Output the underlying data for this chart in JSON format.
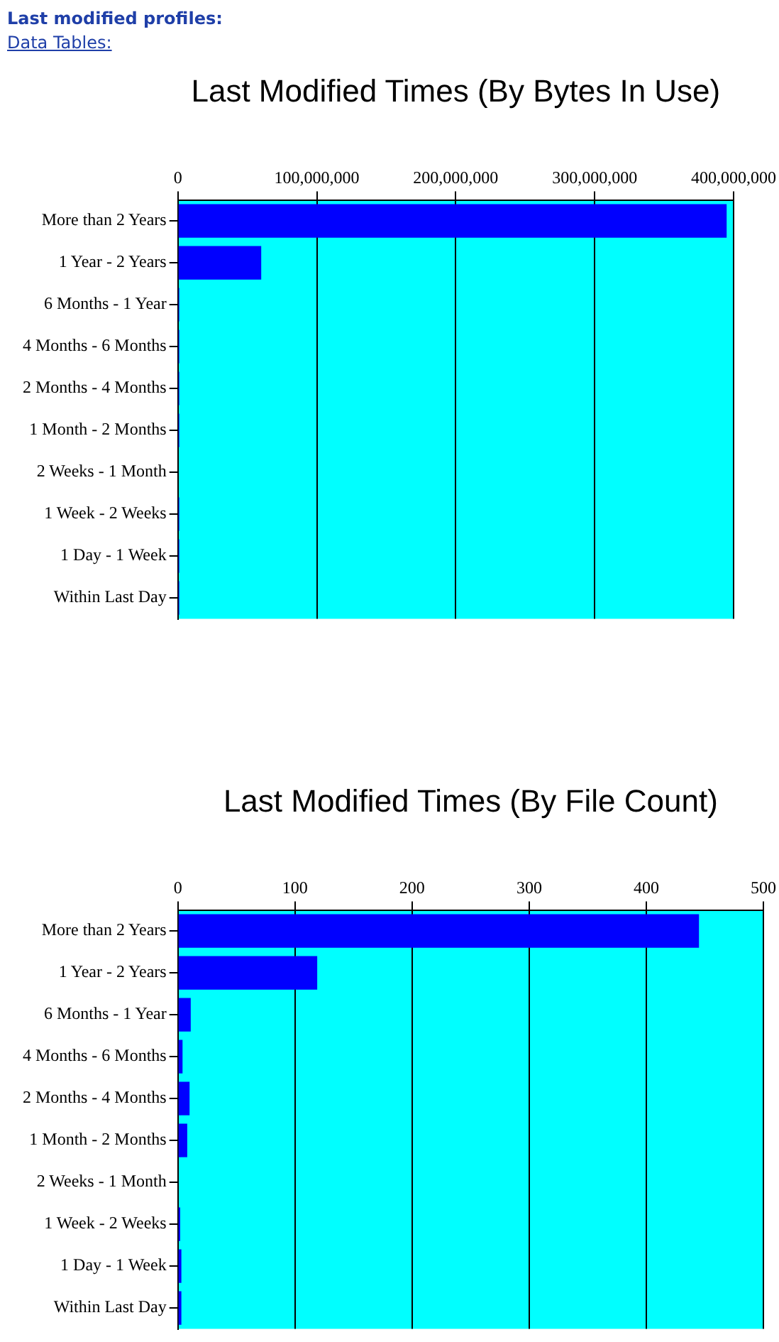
{
  "chart_data": [
    {
      "type": "bar",
      "orientation": "horizontal",
      "title": "Last Modified Times (By Bytes In Use)",
      "annotations": [
        "Last modified profiles:",
        "Data Tables:"
      ],
      "categories": [
        "More than 2 Years",
        "1 Year - 2 Years",
        "6 Months - 1 Year",
        "4 Months - 6 Months",
        "2 Months - 4 Months",
        "1 Month - 2 Months",
        "2 Weeks - 1 Month",
        "1 Week - 2 Weeks",
        "1 Day - 1 Week",
        "Within Last Day"
      ],
      "values": [
        395000000,
        60000000,
        1000000,
        1000000,
        1000000,
        1000000,
        0,
        1000000,
        1000000,
        1000000
      ],
      "color": "#0000ff",
      "xlim": [
        0,
        400000000
      ],
      "xticks": [
        0,
        {
          "value": 100000000,
          "label": "100,000,000"
        },
        {
          "value": 200000000,
          "label": "200,000,000"
        },
        {
          "value": 300000000,
          "label": "300,000,000"
        },
        {
          "value": 400000000,
          "label": "400,000,000"
        }
      ],
      "grid": "x"
    },
    {
      "type": "bar",
      "orientation": "horizontal",
      "title": "Last Modified Times (By File Count)",
      "categories": [
        "More than 2 Years",
        "1 Year - 2 Years",
        "6 Months - 1 Year",
        "4 Months - 6 Months",
        "2 Months - 4 Months",
        "1 Month - 2 Months",
        "2 Weeks - 1 Month",
        "1 Week - 2 Weeks",
        "1 Day - 1 Week",
        "Within Last Day"
      ],
      "values": [
        445,
        119,
        11,
        4,
        10,
        8,
        0,
        2,
        3,
        3
      ],
      "color": "#0000ff",
      "xlim": [
        0,
        500
      ],
      "xticks": [
        0,
        100,
        200,
        300,
        400,
        500
      ],
      "grid": "x"
    }
  ]
}
